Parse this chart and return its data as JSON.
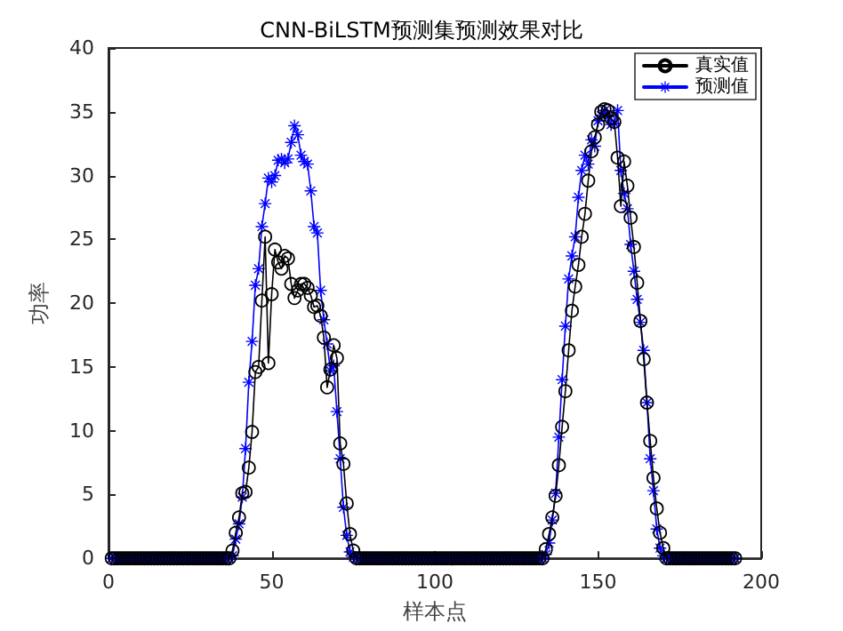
{
  "chart_data": {
    "type": "line",
    "title": "CNN-BiLSTM预测集预测效果对比",
    "xlabel": "样本点",
    "ylabel": "功率",
    "x": [
      1,
      2,
      3,
      4,
      5,
      6,
      7,
      8,
      9,
      10,
      11,
      12,
      13,
      14,
      15,
      16,
      17,
      18,
      19,
      20,
      21,
      22,
      23,
      24,
      25,
      26,
      27,
      28,
      29,
      30,
      31,
      32,
      33,
      34,
      35,
      36,
      37,
      38,
      39,
      40,
      41,
      42,
      43,
      44,
      45,
      46,
      47,
      48,
      49,
      50,
      51,
      52,
      53,
      54,
      55,
      56,
      57,
      58,
      59,
      60,
      61,
      62,
      63,
      64,
      65,
      66,
      67,
      68,
      69,
      70,
      71,
      72,
      73,
      74,
      75,
      76,
      77,
      78,
      79,
      80,
      81,
      82,
      83,
      84,
      85,
      86,
      87,
      88,
      89,
      90,
      91,
      92,
      93,
      94,
      95,
      96,
      97,
      98,
      99,
      100,
      101,
      102,
      103,
      104,
      105,
      106,
      107,
      108,
      109,
      110,
      111,
      112,
      113,
      114,
      115,
      116,
      117,
      118,
      119,
      120,
      121,
      122,
      123,
      124,
      125,
      126,
      127,
      128,
      129,
      130,
      131,
      132,
      133,
      134,
      135,
      136,
      137,
      138,
      139,
      140,
      141,
      142,
      143,
      144,
      145,
      146,
      147,
      148,
      149,
      150,
      151,
      152,
      153,
      154,
      155,
      156,
      157,
      158,
      159,
      160,
      161,
      162,
      163,
      164,
      165,
      166,
      167,
      168,
      169,
      170,
      171,
      172,
      173,
      174,
      175,
      176,
      177,
      178,
      179,
      180,
      181,
      182,
      183,
      184,
      185,
      186,
      187,
      188,
      189,
      190,
      191,
      192
    ],
    "series": [
      {
        "name": "真实值",
        "color": "#000000",
        "marker": "circle",
        "values": [
          0,
          0,
          0,
          0,
          0,
          0,
          0,
          0,
          0,
          0,
          0,
          0,
          0,
          0,
          0,
          0,
          0,
          0,
          0,
          0,
          0,
          0,
          0,
          0,
          0,
          0,
          0,
          0,
          0,
          0,
          0,
          0,
          0,
          0,
          0,
          0,
          0,
          0.6,
          2,
          3.2,
          5.1,
          5.2,
          7.1,
          9.9,
          14.6,
          15,
          20.2,
          25.2,
          15.3,
          20.7,
          24.2,
          23.2,
          22.7,
          23.7,
          23.5,
          21.5,
          20.4,
          21,
          21.5,
          21.5,
          21.2,
          20.6,
          19.7,
          19.8,
          19,
          17.3,
          13.4,
          14.8,
          16.7,
          15.7,
          9,
          7.4,
          4.3,
          1.9,
          0.6,
          0,
          0,
          0,
          0,
          0,
          0,
          0,
          0,
          0,
          0,
          0,
          0,
          0,
          0,
          0,
          0,
          0,
          0,
          0,
          0,
          0,
          0,
          0,
          0,
          0,
          0,
          0,
          0,
          0,
          0,
          0,
          0,
          0,
          0,
          0,
          0,
          0,
          0,
          0,
          0,
          0,
          0,
          0,
          0,
          0,
          0,
          0,
          0,
          0,
          0,
          0,
          0,
          0,
          0,
          0,
          0,
          0,
          0,
          0.7,
          1.9,
          3.2,
          4.9,
          7.3,
          10.3,
          13.1,
          16.3,
          19.4,
          21.3,
          23,
          25.2,
          27,
          29.6,
          31.9,
          33,
          34,
          35,
          35.2,
          35.1,
          34.5,
          34.2,
          31.4,
          27.6,
          31.1,
          29.2,
          26.7,
          24.4,
          21.6,
          18.6,
          15.6,
          12.2,
          9.2,
          6.3,
          3.9,
          2,
          0.8,
          0,
          0,
          0,
          0,
          0,
          0,
          0,
          0,
          0,
          0,
          0,
          0,
          0,
          0,
          0,
          0,
          0,
          0,
          0,
          0,
          0,
          0
        ]
      },
      {
        "name": "预测值",
        "color": "#0000ff",
        "marker": "cross",
        "values": [
          0,
          0,
          0,
          0,
          0,
          0,
          0,
          0,
          0,
          0,
          0,
          0,
          0,
          0,
          0,
          0,
          0,
          0,
          0,
          0,
          0,
          0,
          0,
          0,
          0,
          0,
          0,
          0,
          0,
          0,
          0,
          0,
          0,
          0,
          0,
          0,
          0,
          0.2,
          1.5,
          2.7,
          4.8,
          8.6,
          13.8,
          17,
          21.4,
          22.7,
          26,
          27.8,
          29.8,
          29.5,
          30,
          31.2,
          31.3,
          31,
          31.3,
          32.6,
          33.9,
          33.2,
          31.6,
          31.1,
          30.9,
          28.8,
          26,
          25.5,
          21,
          18.7,
          16.8,
          14.7,
          15.1,
          11.5,
          7.8,
          4,
          1.8,
          0.5,
          0.1,
          0,
          0,
          0,
          0,
          0,
          0,
          0,
          0,
          0,
          0,
          0,
          0,
          0,
          0,
          0,
          0,
          0,
          0,
          0,
          0,
          0,
          0,
          0,
          0,
          0,
          0,
          0,
          0,
          0,
          0,
          0,
          0,
          0,
          0,
          0,
          0,
          0,
          0,
          0,
          0,
          0,
          0,
          0,
          0,
          0,
          0,
          0,
          0,
          0,
          0,
          0,
          0,
          0,
          0,
          0,
          0,
          0,
          0,
          0.3,
          1.2,
          3,
          5.1,
          9.5,
          14,
          18.2,
          21.9,
          23.7,
          25.2,
          28.3,
          30.4,
          31.6,
          30.9,
          32.8,
          32.3,
          34.3,
          34.7,
          35.1,
          34.6,
          34,
          34.1,
          35.1,
          30.4,
          28.6,
          27.4,
          24.6,
          22.5,
          20.3,
          18.5,
          16.3,
          12.2,
          7.8,
          5.3,
          2.3,
          0.8,
          0.2,
          0,
          0,
          0,
          0,
          0,
          0,
          0,
          0,
          0,
          0,
          0,
          0,
          0,
          0,
          0,
          0,
          0,
          0,
          0,
          0,
          0,
          0
        ]
      }
    ],
    "xlim": [
      0,
      200
    ],
    "xticks": [
      0,
      50,
      100,
      150,
      200
    ],
    "ylim": [
      0,
      40
    ],
    "yticks": [
      0,
      5,
      10,
      15,
      20,
      25,
      30,
      35,
      40
    ],
    "legend": "top right",
    "grid": false
  }
}
